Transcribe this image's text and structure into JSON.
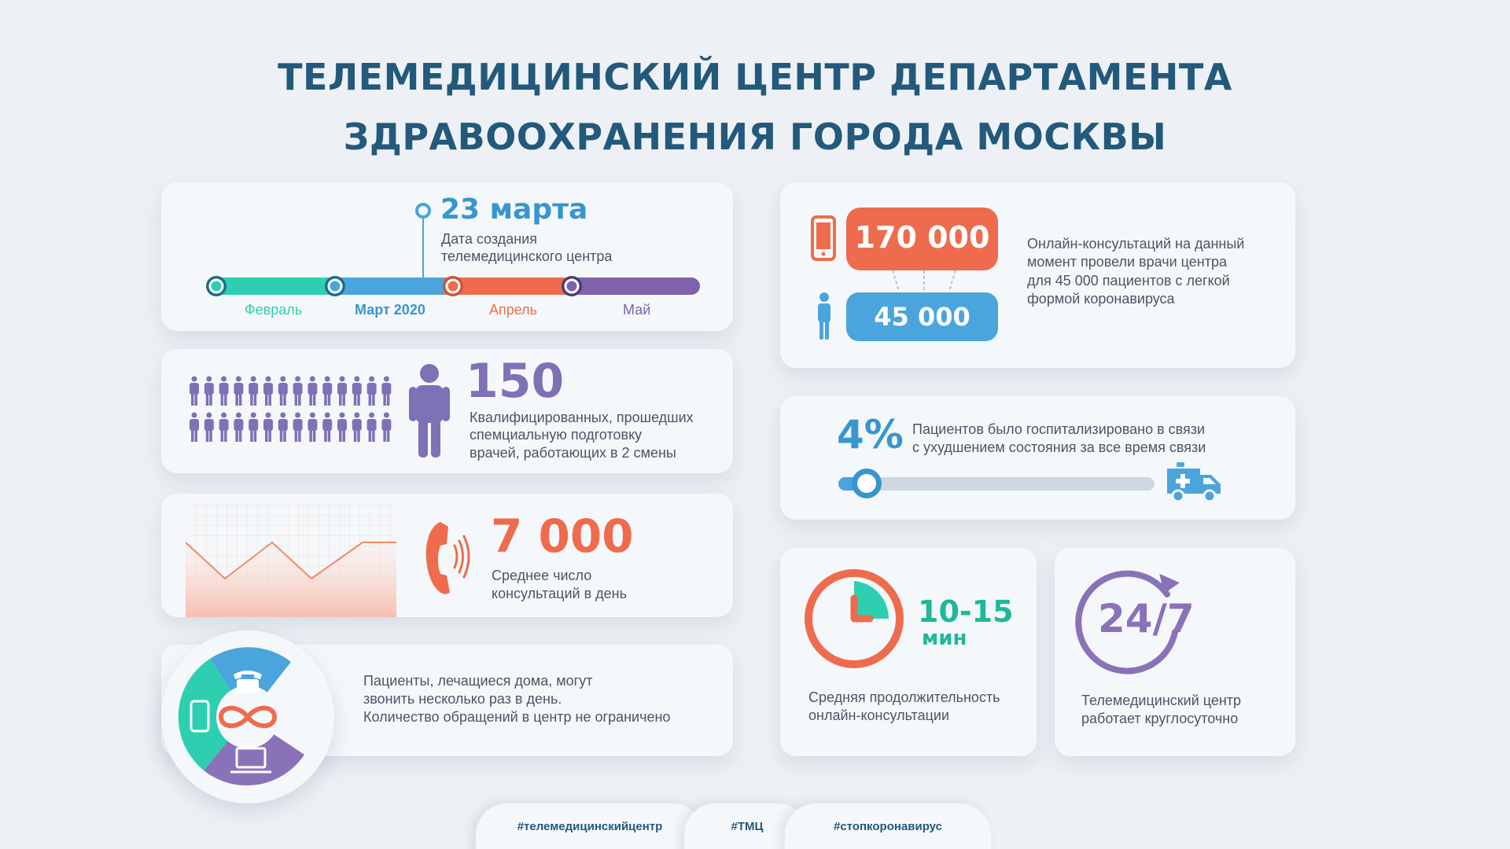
{
  "title": {
    "line1": "ТЕЛЕМЕДИЦИНСКИЙ ЦЕНТР ДЕПАРТАМЕНТА",
    "line2": "ЗДРАВООХРАНЕНИЯ ГОРОДА МОСКВЫ"
  },
  "timeline": {
    "date_value": "23 марта",
    "date_caption_1": "Дата создания",
    "date_caption_2": "телемедицинского центра",
    "months": [
      "Февраль",
      "Март 2020",
      "Апрель",
      "Май"
    ],
    "colors": [
      "#2ecfb0",
      "#4aa5dd",
      "#ee6c4d",
      "#7f62a9"
    ]
  },
  "doctors": {
    "value": "150",
    "caption_1": "Квалифицированных, прошедших",
    "caption_2": "спемциальную подготовку",
    "caption_3": "врачей, работающих в 2 смены",
    "color": "#7f71b5"
  },
  "calls": {
    "value": "7 000",
    "caption_1": "Среднее число",
    "caption_2": "консультаций в день",
    "color": "#ee6c4d"
  },
  "unlimited": {
    "caption_1": "Пациенты, лечащиеся дома, могут",
    "caption_2": "звонить несколько раз в день.",
    "caption_3": "Количество обращений в центр не ограничено"
  },
  "consultations": {
    "value_top": "170 000",
    "value_bottom": "45 000",
    "caption_1": "Онлайн-консультаций на данный",
    "caption_2": "момент провели врачи центра",
    "caption_3": "для 45 000 пациентов с легкой",
    "caption_4": "формой коронавируса"
  },
  "hospitalized": {
    "value": "4%",
    "level": 0.04,
    "caption_1": "Пациентов было госпитализировано в связи",
    "caption_2": "с ухудшением состояния за все время связи"
  },
  "duration": {
    "value": "10-15",
    "unit": "мин",
    "caption_1": "Средняя продолжительность",
    "caption_2": "онлайн-консультации"
  },
  "schedule": {
    "value": "24/7",
    "caption_1": "Телемедицинский центр",
    "caption_2": "работает круглосуточно"
  },
  "hashtags": [
    "#телемедицинскийцентр",
    "#ТМЦ",
    "#стопкоронавирус"
  ],
  "icons": {
    "phone": "telephone-icon",
    "mobile": "smartphone-icon",
    "laptop": "laptop-icon",
    "infinity": "infinity-icon",
    "ambulance": "ambulance-icon",
    "person": "person-icon",
    "clock": "clock-icon",
    "cycle": "cycle-arrow-icon"
  }
}
